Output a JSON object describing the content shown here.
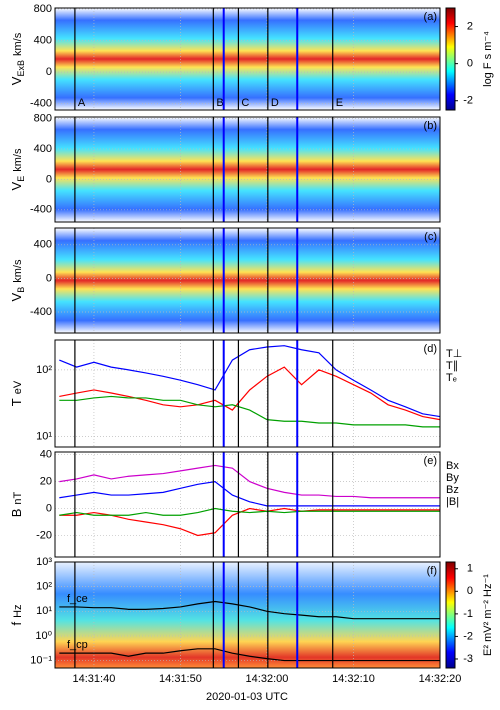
{
  "xaxis": {
    "xlim": [
      35.5,
      80
    ],
    "xticks": [
      {
        "value": 40,
        "label": "14:31:40"
      },
      {
        "value": 50,
        "label": "14:31:50"
      },
      {
        "value": 60,
        "label": "14:32:00"
      },
      {
        "value": 70,
        "label": "14:32:10"
      },
      {
        "value": 80,
        "label": "14:32:20"
      }
    ],
    "label": "2020-01-03 UTC"
  },
  "events": [
    {
      "label": "A",
      "x": 37.8,
      "color": "#000000"
    },
    {
      "label": "B",
      "x": 53.8,
      "color": "#000000"
    },
    {
      "x": 55.0,
      "color": "#0000ff"
    },
    {
      "label": "C",
      "x": 56.7,
      "color": "#000000"
    },
    {
      "label": "D",
      "x": 60.1,
      "color": "#000000"
    },
    {
      "x": 63.5,
      "color": "#0000ff"
    },
    {
      "label": "E",
      "x": 67.6,
      "color": "#000000"
    }
  ],
  "chart_data": [
    {
      "type": "spectrogram",
      "panel": "(a)",
      "ylabel": [
        "V",
        "ExB",
        "km/s"
      ],
      "ylim": [
        -480,
        813
      ],
      "yticks": [
        -400,
        0,
        400,
        800
      ],
      "colorbar": {
        "label": "log F  s m⁻⁴",
        "lim": [
          -2.5,
          3
        ],
        "ticks": [
          -2,
          0,
          2
        ]
      }
    },
    {
      "type": "spectrogram",
      "panel": "(b)",
      "ylabel": [
        "V",
        "E",
        "km/s"
      ],
      "ylim": [
        -560,
        820
      ],
      "yticks": [
        -400,
        0,
        400,
        800
      ]
    },
    {
      "type": "spectrogram",
      "panel": "(c)",
      "ylabel": [
        "V",
        "B",
        "km/s"
      ],
      "ylim": [
        -650,
        600
      ],
      "yticks": [
        -400,
        0,
        400
      ]
    },
    {
      "type": "line",
      "panel": "(d)",
      "ylabel": [
        "T",
        "",
        "eV"
      ],
      "log": true,
      "ylim": [
        7,
        280
      ],
      "yticks": [
        {
          "value": 10,
          "label": "10¹"
        },
        {
          "value": 100,
          "label": "10²"
        }
      ],
      "x": [
        36,
        38,
        40,
        42,
        44,
        46,
        48,
        50,
        52,
        54,
        56,
        58,
        60,
        62,
        64,
        66,
        68,
        70,
        72,
        74,
        76,
        78,
        80
      ],
      "series": [
        {
          "name": "T⊥",
          "color": "#0000ff",
          "values": [
            140,
            110,
            130,
            110,
            100,
            90,
            80,
            70,
            60,
            50,
            140,
            200,
            220,
            230,
            200,
            180,
            100,
            70,
            50,
            35,
            28,
            22,
            20
          ]
        },
        {
          "name": "T∥",
          "color": "#ff0000",
          "values": [
            40,
            45,
            50,
            45,
            40,
            35,
            30,
            28,
            30,
            35,
            25,
            50,
            80,
            110,
            60,
            100,
            80,
            60,
            45,
            30,
            25,
            20,
            18
          ]
        },
        {
          "name": "Tₑ",
          "color": "#00a000",
          "values": [
            35,
            35,
            38,
            40,
            38,
            38,
            35,
            35,
            30,
            28,
            30,
            25,
            18,
            17,
            17,
            16,
            16,
            15,
            15,
            15,
            15,
            14,
            14
          ]
        }
      ]
    },
    {
      "type": "line",
      "panel": "(e)",
      "ylabel": [
        "B",
        "",
        "nT"
      ],
      "ylim": [
        -36,
        42
      ],
      "yticks": [
        -20,
        0,
        20,
        40
      ],
      "x": [
        36,
        38,
        40,
        42,
        44,
        46,
        48,
        50,
        52,
        54,
        56,
        58,
        60,
        62,
        64,
        66,
        68,
        70,
        72,
        74,
        76,
        78,
        80
      ],
      "series": [
        {
          "name": "Bx",
          "color": "#0000ff",
          "values": [
            8,
            10,
            12,
            10,
            10,
            11,
            12,
            15,
            18,
            20,
            10,
            5,
            2,
            2,
            2,
            2,
            2,
            2,
            2,
            2,
            2,
            2,
            2
          ]
        },
        {
          "name": "By",
          "color": "#ff0000",
          "values": [
            -5,
            -5,
            -3,
            -5,
            -8,
            -10,
            -12,
            -15,
            -20,
            -18,
            -5,
            0,
            -2,
            0,
            -2,
            -1,
            -1,
            -1,
            -1,
            -1,
            -1,
            -1,
            -1
          ]
        },
        {
          "name": "Bz",
          "color": "#00a000",
          "values": [
            -5,
            -3,
            -5,
            -5,
            -5,
            -3,
            -5,
            -5,
            -3,
            0,
            -2,
            -3,
            -2,
            -3,
            -2,
            -2,
            -2,
            -2,
            -2,
            -2,
            -2,
            -2,
            -2
          ]
        },
        {
          "name": "|B|",
          "color": "#cc00cc",
          "values": [
            20,
            22,
            25,
            22,
            24,
            25,
            26,
            28,
            30,
            32,
            30,
            20,
            15,
            12,
            10,
            10,
            9,
            9,
            8,
            8,
            8,
            8,
            8
          ]
        }
      ]
    },
    {
      "type": "spectrogram",
      "panel": "(f)",
      "ylabel": [
        "f",
        "",
        "Hz"
      ],
      "log": true,
      "ylim": [
        0.05,
        1000
      ],
      "yticks": [
        {
          "value": 0.1,
          "label": "10⁻¹"
        },
        {
          "value": 1,
          "label": "10⁰"
        },
        {
          "value": 10,
          "label": "10¹"
        },
        {
          "value": 100,
          "label": "10²"
        },
        {
          "value": 1000,
          "label": "10³"
        }
      ],
      "colorbar": {
        "label": "E²  mV² m⁻² Hz⁻¹",
        "lim": [
          -3.4,
          1.3
        ],
        "ticks": [
          -3,
          -2,
          -1,
          0,
          1
        ]
      },
      "x": [
        36,
        38,
        40,
        42,
        44,
        46,
        48,
        50,
        52,
        54,
        56,
        58,
        60,
        62,
        64,
        66,
        68,
        70,
        72,
        74,
        76,
        78,
        80
      ],
      "lines": [
        {
          "name": "f_ce",
          "color": "#000000",
          "values": [
            15,
            15,
            14,
            14,
            12,
            12,
            13,
            15,
            20,
            25,
            20,
            15,
            10,
            8,
            7,
            6,
            6,
            5,
            5,
            5,
            5,
            5,
            5
          ]
        },
        {
          "name": "f_cp",
          "color": "#000000",
          "values": [
            0.2,
            0.2,
            0.2,
            0.2,
            0.15,
            0.2,
            0.2,
            0.25,
            0.3,
            0.3,
            0.2,
            0.15,
            0.12,
            0.1,
            0.1,
            0.1,
            0.1,
            0.1,
            0.1,
            0.1,
            0.1,
            0.1,
            0.1
          ]
        }
      ]
    }
  ]
}
